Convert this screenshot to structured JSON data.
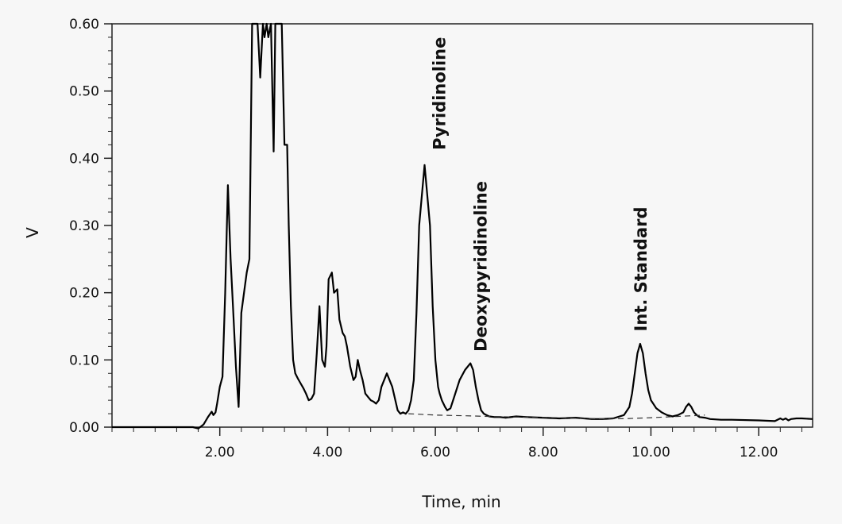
{
  "chart_data": {
    "type": "line",
    "title": "",
    "xlabel": "Time, min",
    "ylabel": "V",
    "xlim": [
      0,
      13.0
    ],
    "ylim": [
      0,
      0.6
    ],
    "grid": false,
    "x_ticks": [
      2,
      4,
      6,
      8,
      10,
      12
    ],
    "x_tick_labels": [
      "2.00",
      "4.00",
      "6.00",
      "8.00",
      "10.00",
      "12.00"
    ],
    "x_minor_step": 0.4,
    "y_ticks": [
      0,
      0.1,
      0.2,
      0.3,
      0.4,
      0.5,
      0.6
    ],
    "y_tick_labels": [
      "0.00",
      "0.10",
      "0.20",
      "0.30",
      "0.40",
      "0.50",
      "0.60"
    ],
    "y_minor_step": 0.02,
    "colors": {
      "line": "#000000",
      "baseline": "#333333",
      "background": "#f7f7f7"
    },
    "series": [
      {
        "style": "solid",
        "x": [
          0,
          1.5,
          1.6,
          1.7,
          1.78,
          1.85,
          1.88,
          1.92,
          1.95,
          2.0,
          2.05,
          2.1,
          2.15,
          2.2,
          2.25,
          2.3,
          2.35,
          2.4,
          2.45,
          2.5,
          2.55,
          2.6,
          2.65,
          2.7,
          2.75,
          2.8,
          2.83,
          2.87,
          2.9,
          2.95,
          3.0,
          3.03,
          3.06,
          3.1,
          3.15,
          3.2,
          3.23,
          3.25,
          3.28,
          3.32,
          3.36,
          3.4,
          3.45,
          3.5,
          3.55,
          3.6,
          3.65,
          3.7,
          3.75,
          3.8,
          3.85,
          3.9,
          3.95,
          3.98,
          4.02,
          4.08,
          4.12,
          4.18,
          4.22,
          4.28,
          4.32,
          4.36,
          4.42,
          4.48,
          4.52,
          4.56,
          4.6,
          4.65,
          4.7,
          4.75,
          4.8,
          4.85,
          4.9,
          4.95,
          5.0,
          5.1,
          5.2,
          5.3,
          5.35,
          5.4,
          5.45,
          5.5,
          5.55,
          5.6,
          5.65,
          5.7,
          5.8,
          5.9,
          5.95,
          6.0,
          6.05,
          6.08,
          6.12,
          6.18,
          6.22,
          6.28,
          6.35,
          6.45,
          6.55,
          6.65,
          6.7,
          6.75,
          6.8,
          6.85,
          6.9,
          6.95,
          7.0,
          7.1,
          7.2,
          7.3,
          7.5,
          7.7,
          8.0,
          8.3,
          8.6,
          8.9,
          9.1,
          9.3,
          9.5,
          9.6,
          9.65,
          9.7,
          9.75,
          9.8,
          9.85,
          9.9,
          9.95,
          10.0,
          10.1,
          10.2,
          10.3,
          10.4,
          10.5,
          10.6,
          10.65,
          10.7,
          10.75,
          10.8,
          10.85,
          10.9,
          11.0,
          11.1,
          11.3,
          11.5,
          12.0,
          12.3,
          12.4,
          12.45,
          12.5,
          12.55,
          12.6,
          12.7,
          12.8,
          13.0
        ],
        "y": [
          0.0,
          0.0,
          -0.002,
          0.004,
          0.015,
          0.023,
          0.018,
          0.022,
          0.035,
          0.06,
          0.075,
          0.2,
          0.36,
          0.25,
          0.17,
          0.09,
          0.03,
          0.17,
          0.2,
          0.23,
          0.25,
          0.6,
          0.6,
          0.6,
          0.52,
          0.6,
          0.58,
          0.6,
          0.58,
          0.6,
          0.41,
          0.6,
          0.6,
          0.6,
          0.6,
          0.42,
          0.42,
          0.42,
          0.3,
          0.18,
          0.1,
          0.08,
          0.072,
          0.065,
          0.058,
          0.05,
          0.04,
          0.042,
          0.05,
          0.11,
          0.18,
          0.1,
          0.09,
          0.12,
          0.22,
          0.23,
          0.2,
          0.205,
          0.16,
          0.14,
          0.135,
          0.12,
          0.09,
          0.07,
          0.075,
          0.1,
          0.085,
          0.07,
          0.05,
          0.045,
          0.04,
          0.038,
          0.035,
          0.04,
          0.06,
          0.08,
          0.06,
          0.025,
          0.02,
          0.022,
          0.02,
          0.025,
          0.04,
          0.07,
          0.17,
          0.3,
          0.39,
          0.3,
          0.18,
          0.1,
          0.06,
          0.05,
          0.04,
          0.03,
          0.025,
          0.028,
          0.045,
          0.07,
          0.085,
          0.095,
          0.085,
          0.06,
          0.04,
          0.025,
          0.02,
          0.018,
          0.016,
          0.015,
          0.015,
          0.014,
          0.016,
          0.015,
          0.014,
          0.013,
          0.014,
          0.012,
          0.012,
          0.013,
          0.018,
          0.03,
          0.05,
          0.08,
          0.11,
          0.124,
          0.11,
          0.08,
          0.055,
          0.04,
          0.028,
          0.022,
          0.018,
          0.016,
          0.018,
          0.022,
          0.03,
          0.035,
          0.03,
          0.022,
          0.018,
          0.015,
          0.014,
          0.012,
          0.011,
          0.011,
          0.01,
          0.009,
          0.013,
          0.011,
          0.013,
          0.01,
          0.012,
          0.013,
          0.013,
          0.012
        ]
      },
      {
        "style": "dashed",
        "x": [
          5.5,
          6.0,
          6.5,
          7.0,
          7.5,
          8.0,
          8.5,
          9.0,
          9.5,
          10.0,
          10.5,
          11.0
        ],
        "y": [
          0.02,
          0.018,
          0.017,
          0.016,
          0.015,
          0.0145,
          0.0135,
          0.0125,
          0.0125,
          0.014,
          0.016,
          0.018
        ]
      }
    ],
    "annotations": [
      {
        "text": "Pyridinoline",
        "x": 6.08,
        "y": 0.41
      },
      {
        "text": "Deoxypyridinoline",
        "x": 6.85,
        "y": 0.11
      },
      {
        "text": "Int. Standard",
        "x": 9.82,
        "y": 0.14
      }
    ]
  }
}
